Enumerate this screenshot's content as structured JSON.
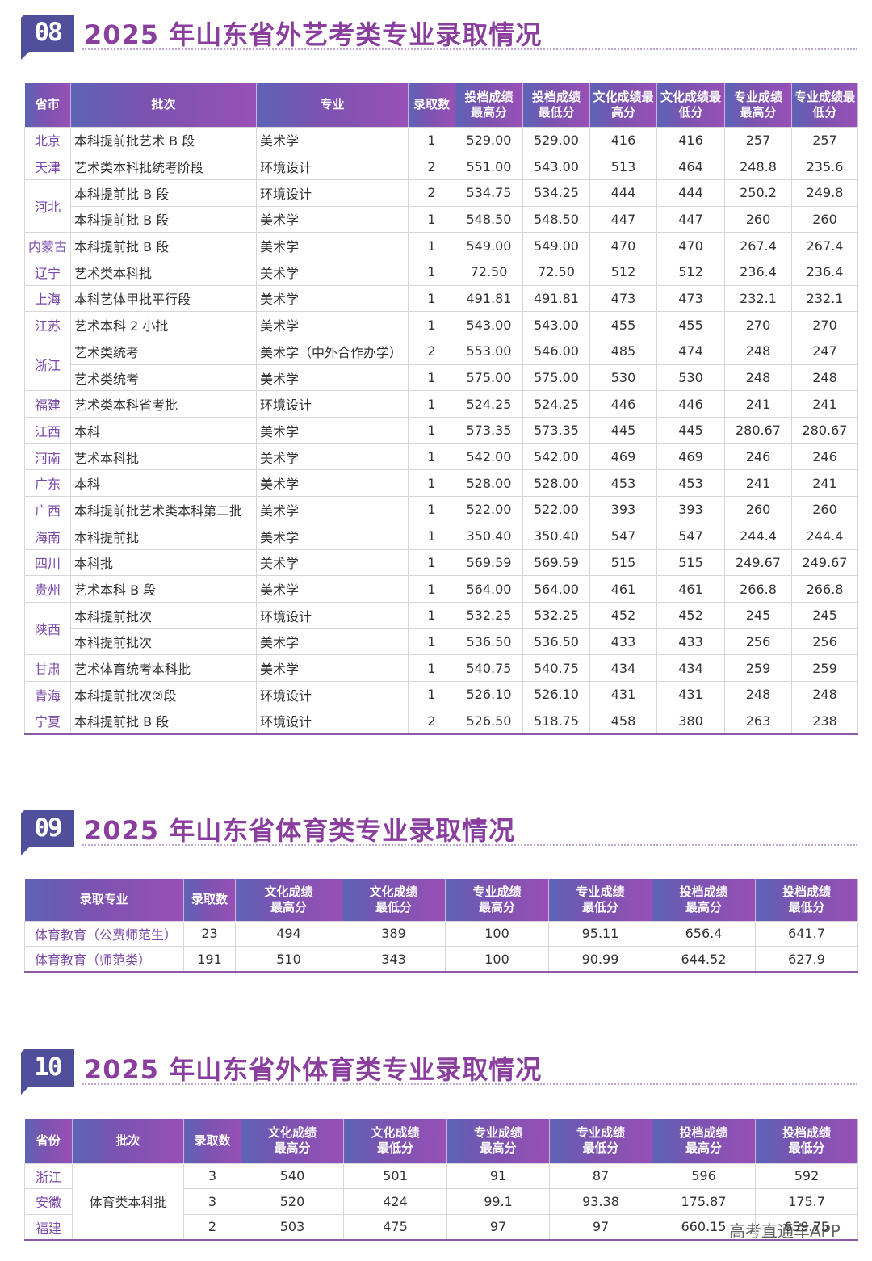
{
  "sections": [
    {
      "number": "08",
      "title": "2025 年山东省外艺考类专业录取情况",
      "table": {
        "header": [
          [
            "省市"
          ],
          [
            "批次"
          ],
          [
            "专业"
          ],
          [
            "录取数"
          ],
          [
            "投档成绩",
            "最高分"
          ],
          [
            "投档成绩",
            "最低分"
          ],
          [
            "文化成绩最",
            "高分"
          ],
          [
            "文化成绩最",
            "低分"
          ],
          [
            "专业成绩",
            "最高分"
          ],
          [
            "专业成绩最",
            "低分"
          ]
        ],
        "groups": [
          {
            "province": "北京",
            "rows": [
              [
                "本科提前批艺术 B 段",
                "美术学",
                "1",
                "529.00",
                "529.00",
                "416",
                "416",
                "257",
                "257"
              ]
            ]
          },
          {
            "province": "天津",
            "rows": [
              [
                "艺术类本科批统考阶段",
                "环境设计",
                "2",
                "551.00",
                "543.00",
                "513",
                "464",
                "248.8",
                "235.6"
              ]
            ]
          },
          {
            "province": "河北",
            "rows": [
              [
                "本科提前批 B 段",
                "环境设计",
                "2",
                "534.75",
                "534.25",
                "444",
                "444",
                "250.2",
                "249.8"
              ],
              [
                "本科提前批 B 段",
                "美术学",
                "1",
                "548.50",
                "548.50",
                "447",
                "447",
                "260",
                "260"
              ]
            ]
          },
          {
            "province": "内蒙古",
            "rows": [
              [
                "本科提前批 B 段",
                "美术学",
                "1",
                "549.00",
                "549.00",
                "470",
                "470",
                "267.4",
                "267.4"
              ]
            ]
          },
          {
            "province": "辽宁",
            "rows": [
              [
                "艺术类本科批",
                "美术学",
                "1",
                "72.50",
                "72.50",
                "512",
                "512",
                "236.4",
                "236.4"
              ]
            ]
          },
          {
            "province": "上海",
            "rows": [
              [
                "本科艺体甲批平行段",
                "美术学",
                "1",
                "491.81",
                "491.81",
                "473",
                "473",
                "232.1",
                "232.1"
              ]
            ]
          },
          {
            "province": "江苏",
            "rows": [
              [
                "艺术本科 2 小批",
                "美术学",
                "1",
                "543.00",
                "543.00",
                "455",
                "455",
                "270",
                "270"
              ]
            ]
          },
          {
            "province": "浙江",
            "rows": [
              [
                "艺术类统考",
                "美术学（中外合作办学）",
                "2",
                "553.00",
                "546.00",
                "485",
                "474",
                "248",
                "247"
              ],
              [
                "艺术类统考",
                "美术学",
                "1",
                "575.00",
                "575.00",
                "530",
                "530",
                "248",
                "248"
              ]
            ]
          },
          {
            "province": "福建",
            "rows": [
              [
                "艺术类本科省考批",
                "环境设计",
                "1",
                "524.25",
                "524.25",
                "446",
                "446",
                "241",
                "241"
              ]
            ]
          },
          {
            "province": "江西",
            "rows": [
              [
                "本科",
                "美术学",
                "1",
                "573.35",
                "573.35",
                "445",
                "445",
                "280.67",
                "280.67"
              ]
            ]
          },
          {
            "province": "河南",
            "rows": [
              [
                "艺术本科批",
                "美术学",
                "1",
                "542.00",
                "542.00",
                "469",
                "469",
                "246",
                "246"
              ]
            ]
          },
          {
            "province": "广东",
            "rows": [
              [
                "本科",
                "美术学",
                "1",
                "528.00",
                "528.00",
                "453",
                "453",
                "241",
                "241"
              ]
            ]
          },
          {
            "province": "广西",
            "rows": [
              [
                "本科提前批艺术类本科第二批",
                "美术学",
                "1",
                "522.00",
                "522.00",
                "393",
                "393",
                "260",
                "260"
              ]
            ]
          },
          {
            "province": "海南",
            "rows": [
              [
                "本科提前批",
                "美术学",
                "1",
                "350.40",
                "350.40",
                "547",
                "547",
                "244.4",
                "244.4"
              ]
            ]
          },
          {
            "province": "四川",
            "rows": [
              [
                "本科批",
                "美术学",
                "1",
                "569.59",
                "569.59",
                "515",
                "515",
                "249.67",
                "249.67"
              ]
            ]
          },
          {
            "province": "贵州",
            "rows": [
              [
                "艺术本科 B 段",
                "美术学",
                "1",
                "564.00",
                "564.00",
                "461",
                "461",
                "266.8",
                "266.8"
              ]
            ]
          },
          {
            "province": "陕西",
            "rows": [
              [
                "本科提前批次",
                "环境设计",
                "1",
                "532.25",
                "532.25",
                "452",
                "452",
                "245",
                "245"
              ],
              [
                "本科提前批次",
                "美术学",
                "1",
                "536.50",
                "536.50",
                "433",
                "433",
                "256",
                "256"
              ]
            ]
          },
          {
            "province": "甘肃",
            "rows": [
              [
                "艺术体育统考本科批",
                "美术学",
                "1",
                "540.75",
                "540.75",
                "434",
                "434",
                "259",
                "259"
              ]
            ]
          },
          {
            "province": "青海",
            "rows": [
              [
                "本科提前批次②段",
                "环境设计",
                "1",
                "526.10",
                "526.10",
                "431",
                "431",
                "248",
                "248"
              ]
            ]
          },
          {
            "province": "宁夏",
            "rows": [
              [
                "本科提前批 B 段",
                "环境设计",
                "2",
                "526.50",
                "518.75",
                "458",
                "380",
                "263",
                "238"
              ]
            ]
          }
        ]
      }
    },
    {
      "number": "09",
      "title": "2025 年山东省体育类专业录取情况",
      "table": {
        "header": [
          [
            "录取专业"
          ],
          [
            "录取数"
          ],
          [
            "文化成绩",
            "最高分"
          ],
          [
            "文化成绩",
            "最低分"
          ],
          [
            "专业成绩",
            "最高分"
          ],
          [
            "专业成绩",
            "最低分"
          ],
          [
            "投档成绩",
            "最高分"
          ],
          [
            "投档成绩",
            "最低分"
          ]
        ],
        "rows": [
          [
            "体育教育（公费师范生）",
            "23",
            "494",
            "389",
            "100",
            "95.11",
            "656.4",
            "641.7"
          ],
          [
            "体育教育（师范类）",
            "191",
            "510",
            "343",
            "100",
            "90.99",
            "644.52",
            "627.9"
          ]
        ]
      }
    },
    {
      "number": "10",
      "title": "2025 年山东省外体育类专业录取情况",
      "table": {
        "header": [
          [
            "省份"
          ],
          [
            "批次"
          ],
          [
            "录取数"
          ],
          [
            "文化成绩",
            "最高分"
          ],
          [
            "文化成绩",
            "最低分"
          ],
          [
            "专业成绩",
            "最高分"
          ],
          [
            "专业成绩",
            "最低分"
          ],
          [
            "投档成绩",
            "最高分"
          ],
          [
            "投档成绩",
            "最低分"
          ]
        ],
        "batch": "体育类本科批",
        "rows": [
          [
            "浙江",
            "3",
            "540",
            "501",
            "91",
            "87",
            "596",
            "592"
          ],
          [
            "安徽",
            "3",
            "520",
            "424",
            "99.1",
            "93.38",
            "175.87",
            "175.7"
          ],
          [
            "福建",
            "2",
            "503",
            "475",
            "97",
            "97",
            "660.15",
            "659.75"
          ]
        ]
      }
    }
  ],
  "watermark": "高考直通车APP"
}
